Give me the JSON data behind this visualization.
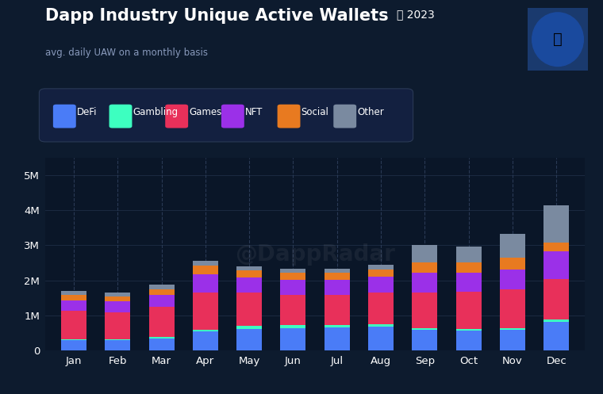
{
  "title": "Dapp Industry Unique Active Wallets",
  "year": "2023",
  "subtitle": "avg. daily UAW on a monthly basis",
  "background_color": "#0d1b2e",
  "plot_bg_color": "#0a1628",
  "months": [
    "Jan",
    "Feb",
    "Mar",
    "Apr",
    "May",
    "Jun",
    "Jul",
    "Aug",
    "Sep",
    "Oct",
    "Nov",
    "Dec"
  ],
  "categories": [
    "DeFi",
    "Gambling",
    "Games",
    "NFT",
    "Social",
    "Other"
  ],
  "colors": {
    "DeFi": "#4a7cf7",
    "Gambling": "#3dffc0",
    "Games": "#e8305a",
    "NFT": "#9b30e8",
    "Social": "#e87a20",
    "Other": "#7a8aa0"
  },
  "data": {
    "DeFi": [
      300000,
      290000,
      350000,
      550000,
      620000,
      650000,
      660000,
      680000,
      600000,
      570000,
      600000,
      820000
    ],
    "Gambling": [
      30000,
      30000,
      40000,
      55000,
      80000,
      80000,
      80000,
      80000,
      50000,
      50000,
      50000,
      60000
    ],
    "Games": [
      800000,
      780000,
      870000,
      1050000,
      950000,
      850000,
      850000,
      900000,
      1000000,
      1050000,
      1100000,
      1150000
    ],
    "NFT": [
      300000,
      300000,
      320000,
      520000,
      430000,
      430000,
      430000,
      450000,
      580000,
      560000,
      550000,
      800000
    ],
    "Social": [
      150000,
      145000,
      160000,
      250000,
      200000,
      200000,
      200000,
      210000,
      280000,
      290000,
      350000,
      250000
    ],
    "Other": [
      120000,
      120000,
      140000,
      130000,
      120000,
      120000,
      120000,
      130000,
      490000,
      450000,
      680000,
      1050000
    ]
  },
  "ylim": [
    0,
    5500000
  ],
  "yticks": [
    0,
    1000000,
    2000000,
    3000000,
    4000000,
    5000000
  ],
  "ytick_labels": [
    "0",
    "1M",
    "2M",
    "3M",
    "4M",
    "5M"
  ]
}
